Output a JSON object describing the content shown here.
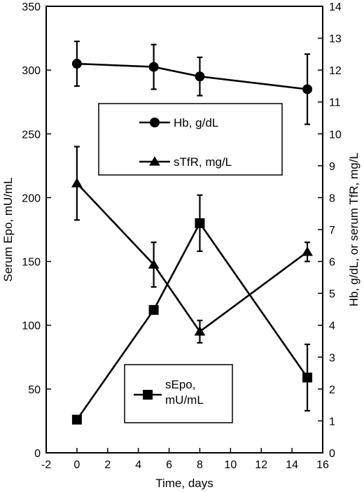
{
  "chart_data": {
    "type": "line",
    "xlabel": "Time, days",
    "ylabel_left": "Serum Epo, mU/mL",
    "ylabel_right": "Hb, g/dL, or serum TfR, mg/L",
    "xlim": [
      -2,
      16
    ],
    "ylim_left": [
      0,
      350
    ],
    "ylim_right": [
      0,
      14
    ],
    "x_ticks": [
      "-2",
      "0",
      "2",
      "4",
      "6",
      "8",
      "10",
      "12",
      "14",
      "16"
    ],
    "y_left_ticks": [
      "0",
      "50",
      "100",
      "150",
      "200",
      "250",
      "300",
      "350"
    ],
    "y_right_ticks": [
      "0",
      "1",
      "2",
      "3",
      "4",
      "5",
      "6",
      "7",
      "8",
      "9",
      "10",
      "11",
      "12",
      "13",
      "14"
    ],
    "grid": false,
    "series": [
      {
        "name": "Hb, g/dL",
        "marker": "circle",
        "axis": "right",
        "x": [
          0,
          5,
          8,
          15
        ],
        "y": [
          12.2,
          12.1,
          11.8,
          11.4
        ],
        "err": [
          0.7,
          0.7,
          0.6,
          1.1
        ]
      },
      {
        "name": "sTfR, mg/L",
        "marker": "triangle",
        "axis": "right",
        "x": [
          0,
          5,
          8,
          15
        ],
        "y": [
          8.45,
          5.9,
          3.8,
          6.3
        ],
        "err": [
          1.15,
          0.7,
          0.35,
          0.3
        ]
      },
      {
        "name": "sEpo, mU/mL",
        "legend_lines": [
          "sEpo,",
          "mU/mL"
        ],
        "marker": "square",
        "axis": "left",
        "x": [
          0,
          5,
          8,
          15
        ],
        "y": [
          26,
          112,
          180,
          59
        ],
        "err": [
          0,
          3,
          22,
          26
        ]
      }
    ],
    "legends": [
      {
        "position": "upper-center",
        "entries": [
          "Hb, g/dL",
          "sTfR, mg/L"
        ]
      },
      {
        "position": "lower-center",
        "entries": [
          "sEpo, mU/mL"
        ]
      }
    ]
  }
}
